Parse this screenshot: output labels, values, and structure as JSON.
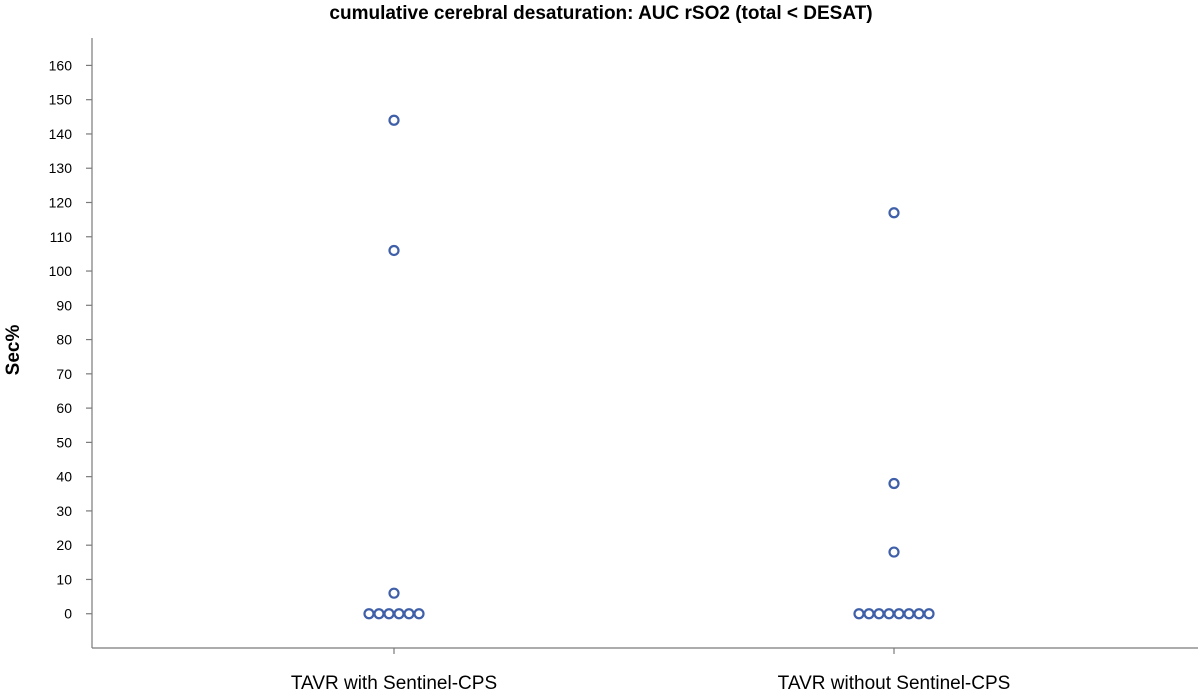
{
  "chart_data": {
    "type": "scatter",
    "title": "cumulative cerebral desaturation: AUC rSO2 (total < DESAT)",
    "xlabel": "",
    "ylabel": "Sec%",
    "ylim": [
      -10,
      168
    ],
    "yticks": [
      0,
      10,
      20,
      30,
      40,
      50,
      60,
      70,
      80,
      90,
      100,
      110,
      120,
      130,
      140,
      150,
      160
    ],
    "categories": [
      "TAVR with Sentinel-CPS",
      "TAVR without Sentinel-CPS"
    ],
    "grid": false,
    "marker_color": "#3f5fa8",
    "groups": [
      {
        "category": "TAVR with Sentinel-CPS",
        "values": [
          0,
          0,
          0,
          0,
          0,
          0,
          6,
          106,
          144
        ]
      },
      {
        "category": "TAVR without Sentinel-CPS",
        "values": [
          0,
          0,
          0,
          0,
          0,
          0,
          0,
          0,
          18,
          38,
          117
        ]
      }
    ]
  }
}
